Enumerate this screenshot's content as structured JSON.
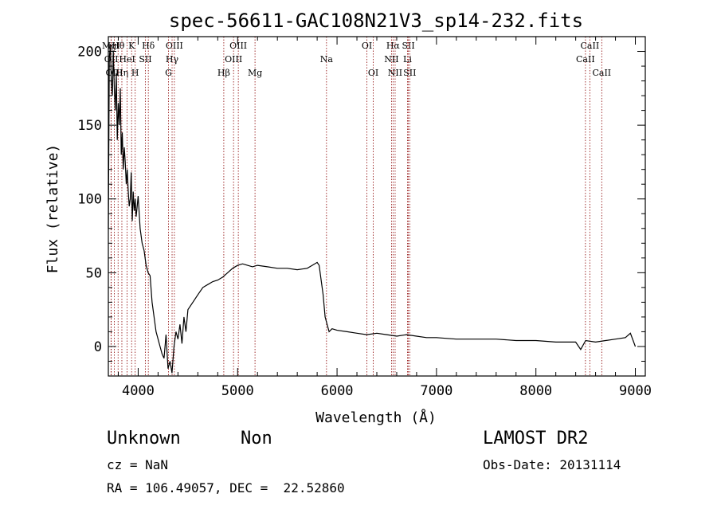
{
  "chart_data": {
    "type": "line",
    "title": "spec-56611-GAC108N21V3_sp14-232.fits",
    "xlabel": "Wavelength (Å)",
    "ylabel": "Flux (relative)",
    "xlim": [
      3700,
      9100
    ],
    "ylim": [
      -20,
      210
    ],
    "xticks": [
      4000,
      5000,
      6000,
      7000,
      8000,
      9000
    ],
    "yticks": [
      0,
      50,
      100,
      150,
      200
    ],
    "grid": false,
    "series": [
      {
        "x": [
          3700,
          3710,
          3720,
          3730,
          3740,
          3750,
          3760,
          3770,
          3780,
          3790,
          3800,
          3810,
          3820,
          3830,
          3840,
          3850,
          3860,
          3870,
          3880,
          3890,
          3900,
          3910,
          3920,
          3930,
          3940,
          3950,
          3960,
          3970,
          3980,
          3990,
          4000,
          4020,
          4040,
          4060,
          4080,
          4100,
          4120,
          4140,
          4160,
          4180,
          4200,
          4220,
          4240,
          4260,
          4280,
          4300,
          4320,
          4340,
          4360,
          4380,
          4400,
          4420,
          4440,
          4460,
          4480,
          4500,
          4550,
          4600,
          4650,
          4700,
          4750,
          4800,
          4850,
          4900,
          4950,
          5000,
          5050,
          5100,
          5150,
          5200,
          5300,
          5400,
          5500,
          5600,
          5700,
          5750,
          5800,
          5820,
          5840,
          5860,
          5880,
          5900,
          5920,
          5950,
          6000,
          6100,
          6200,
          6300,
          6400,
          6500,
          6600,
          6700,
          6800,
          6900,
          7000,
          7200,
          7400,
          7600,
          7800,
          8000,
          8200,
          8400,
          8450,
          8500,
          8600,
          8700,
          8800,
          8900,
          8950,
          9000
        ],
        "y": [
          80,
          195,
          205,
          180,
          170,
          200,
          175,
          160,
          185,
          140,
          165,
          150,
          175,
          130,
          145,
          120,
          135,
          125,
          110,
          120,
          105,
          95,
          100,
          118,
          85,
          105,
          92,
          100,
          88,
          95,
          102,
          80,
          70,
          65,
          55,
          50,
          48,
          30,
          20,
          10,
          5,
          0,
          -5,
          -8,
          8,
          -15,
          -10,
          -18,
          0,
          10,
          5,
          15,
          2,
          20,
          10,
          25,
          30,
          35,
          40,
          42,
          44,
          45,
          47,
          50,
          53,
          55,
          56,
          55,
          54,
          55,
          54,
          53,
          53,
          52,
          53,
          55,
          57,
          55,
          45,
          35,
          20,
          15,
          10,
          12,
          11,
          10,
          9,
          8,
          9,
          8,
          7,
          8,
          7,
          6,
          6,
          5,
          5,
          5,
          4,
          4,
          3,
          3,
          -2,
          4,
          3,
          4,
          5,
          6,
          9,
          0
        ]
      }
    ],
    "spectral_lines": [
      {
        "label": "MgI",
        "x": 3727,
        "row": 0
      },
      {
        "label": "OII",
        "x": 3729,
        "row": 1
      },
      {
        "label": "OIII",
        "x": 3760,
        "row": 2
      },
      {
        "label": "Hθ",
        "x": 3798,
        "row": 0
      },
      {
        "label": "Hη",
        "x": 3836,
        "row": 2
      },
      {
        "label": "HeI",
        "x": 3889,
        "row": 1
      },
      {
        "label": "K",
        "x": 3934,
        "row": 0
      },
      {
        "label": "H",
        "x": 3970,
        "row": 2
      },
      {
        "label": "SII",
        "x": 4072,
        "row": 1
      },
      {
        "label": "Hδ",
        "x": 4102,
        "row": 0
      },
      {
        "label": "OIII",
        "x": 4364,
        "row": 0
      },
      {
        "label": "Hγ",
        "x": 4341,
        "row": 1
      },
      {
        "label": "G",
        "x": 4305,
        "row": 2
      },
      {
        "label": "Hβ",
        "x": 4861,
        "row": 2
      },
      {
        "label": "OIII",
        "x": 5007,
        "row": 0
      },
      {
        "label": "OIII",
        "x": 4959,
        "row": 1
      },
      {
        "label": "Mg",
        "x": 5175,
        "row": 2
      },
      {
        "label": "Na",
        "x": 5894,
        "row": 1
      },
      {
        "label": "OI",
        "x": 6300,
        "row": 0
      },
      {
        "label": "OI",
        "x": 6364,
        "row": 2
      },
      {
        "label": "Hα",
        "x": 6563,
        "row": 0
      },
      {
        "label": "NII",
        "x": 6548,
        "row": 1
      },
      {
        "label": "NII",
        "x": 6584,
        "row": 2
      },
      {
        "label": "SII",
        "x": 6717,
        "row": 0
      },
      {
        "label": "Li",
        "x": 6708,
        "row": 1
      },
      {
        "label": "SII",
        "x": 6731,
        "row": 2
      },
      {
        "label": "CaII",
        "x": 8542,
        "row": 0
      },
      {
        "label": "CaII",
        "x": 8498,
        "row": 1
      },
      {
        "label": "CaII",
        "x": 8662,
        "row": 2
      }
    ]
  },
  "footer": {
    "class_label": "Unknown",
    "subclass_label": "Non",
    "survey": "LAMOST DR2",
    "cz": "cz = NaN",
    "obs_date": "Obs-Date: 20131114",
    "coords": "RA = 106.49057, DEC =  22.52860"
  }
}
